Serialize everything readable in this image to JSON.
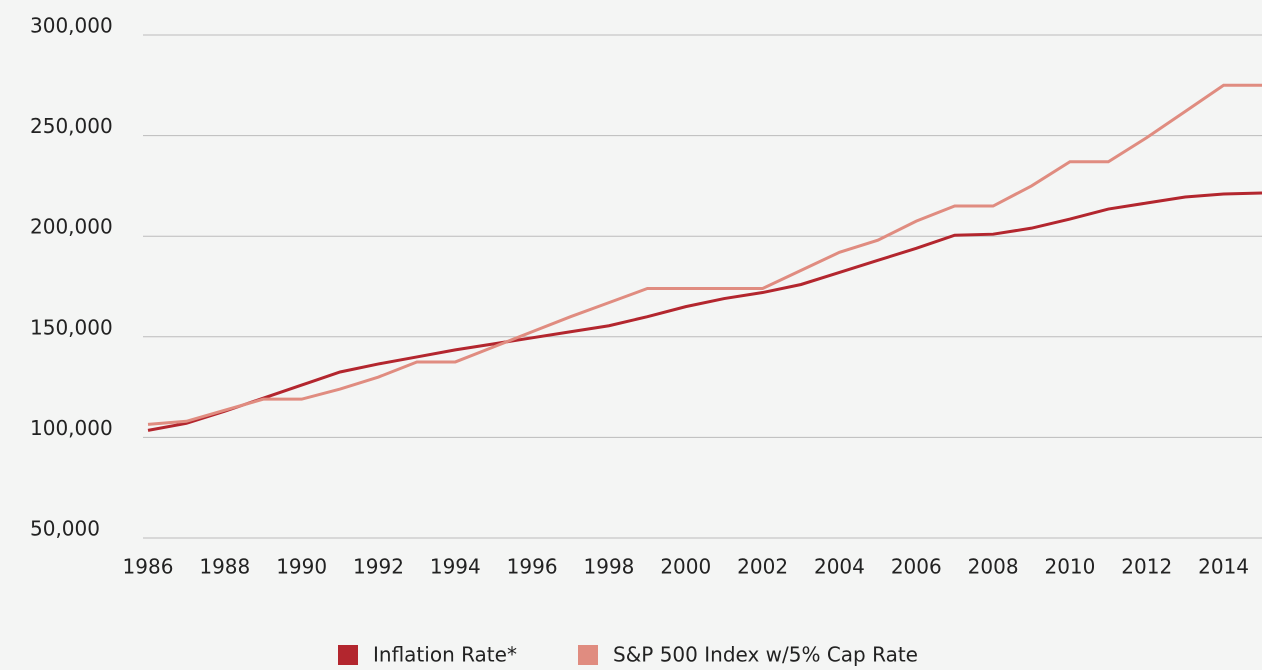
{
  "chart_data": {
    "type": "line",
    "categories": [
      "1986",
      null,
      "1988",
      null,
      "1990",
      null,
      "1992",
      null,
      "1994",
      null,
      "1996",
      null,
      "1998",
      null,
      "2000",
      null,
      "2002",
      null,
      "2004",
      null,
      "2006",
      null,
      "2008",
      null,
      "2010",
      null,
      "2012",
      null,
      "2014",
      null
    ],
    "series": [
      {
        "name": "Inflation Rate*",
        "color": "#b3262e",
        "values": [
          103500,
          107000,
          113000,
          119500,
          126000,
          132500,
          136500,
          140000,
          143500,
          146500,
          149500,
          152500,
          155500,
          160000,
          165000,
          169000,
          172000,
          176000,
          182000,
          188000,
          194000,
          200500,
          201000,
          204000,
          208500,
          213500,
          216500,
          219500,
          221000,
          221500
        ]
      },
      {
        "name": "S&P 500 Index w/5% Cap Rate",
        "color": "#e08c80",
        "values": [
          106500,
          108000,
          113500,
          119000,
          119000,
          124000,
          130000,
          137500,
          137500,
          145000,
          152500,
          160000,
          167000,
          174000,
          174000,
          174000,
          174000,
          183000,
          192000,
          198000,
          207500,
          215000,
          215000,
          225000,
          237000,
          237000,
          249000,
          262000,
          275000,
          275000
        ]
      }
    ],
    "ylim": [
      50000,
      300000
    ],
    "yticks": [
      {
        "value": 50000,
        "label": "50,000"
      },
      {
        "value": 100000,
        "label": "100,000"
      },
      {
        "value": 150000,
        "label": "150,000"
      },
      {
        "value": 200000,
        "label": "200,000"
      },
      {
        "value": 250000,
        "label": "250,000"
      },
      {
        "value": 300000,
        "label": "300,000"
      }
    ],
    "grid": true,
    "legend": "bottom"
  }
}
